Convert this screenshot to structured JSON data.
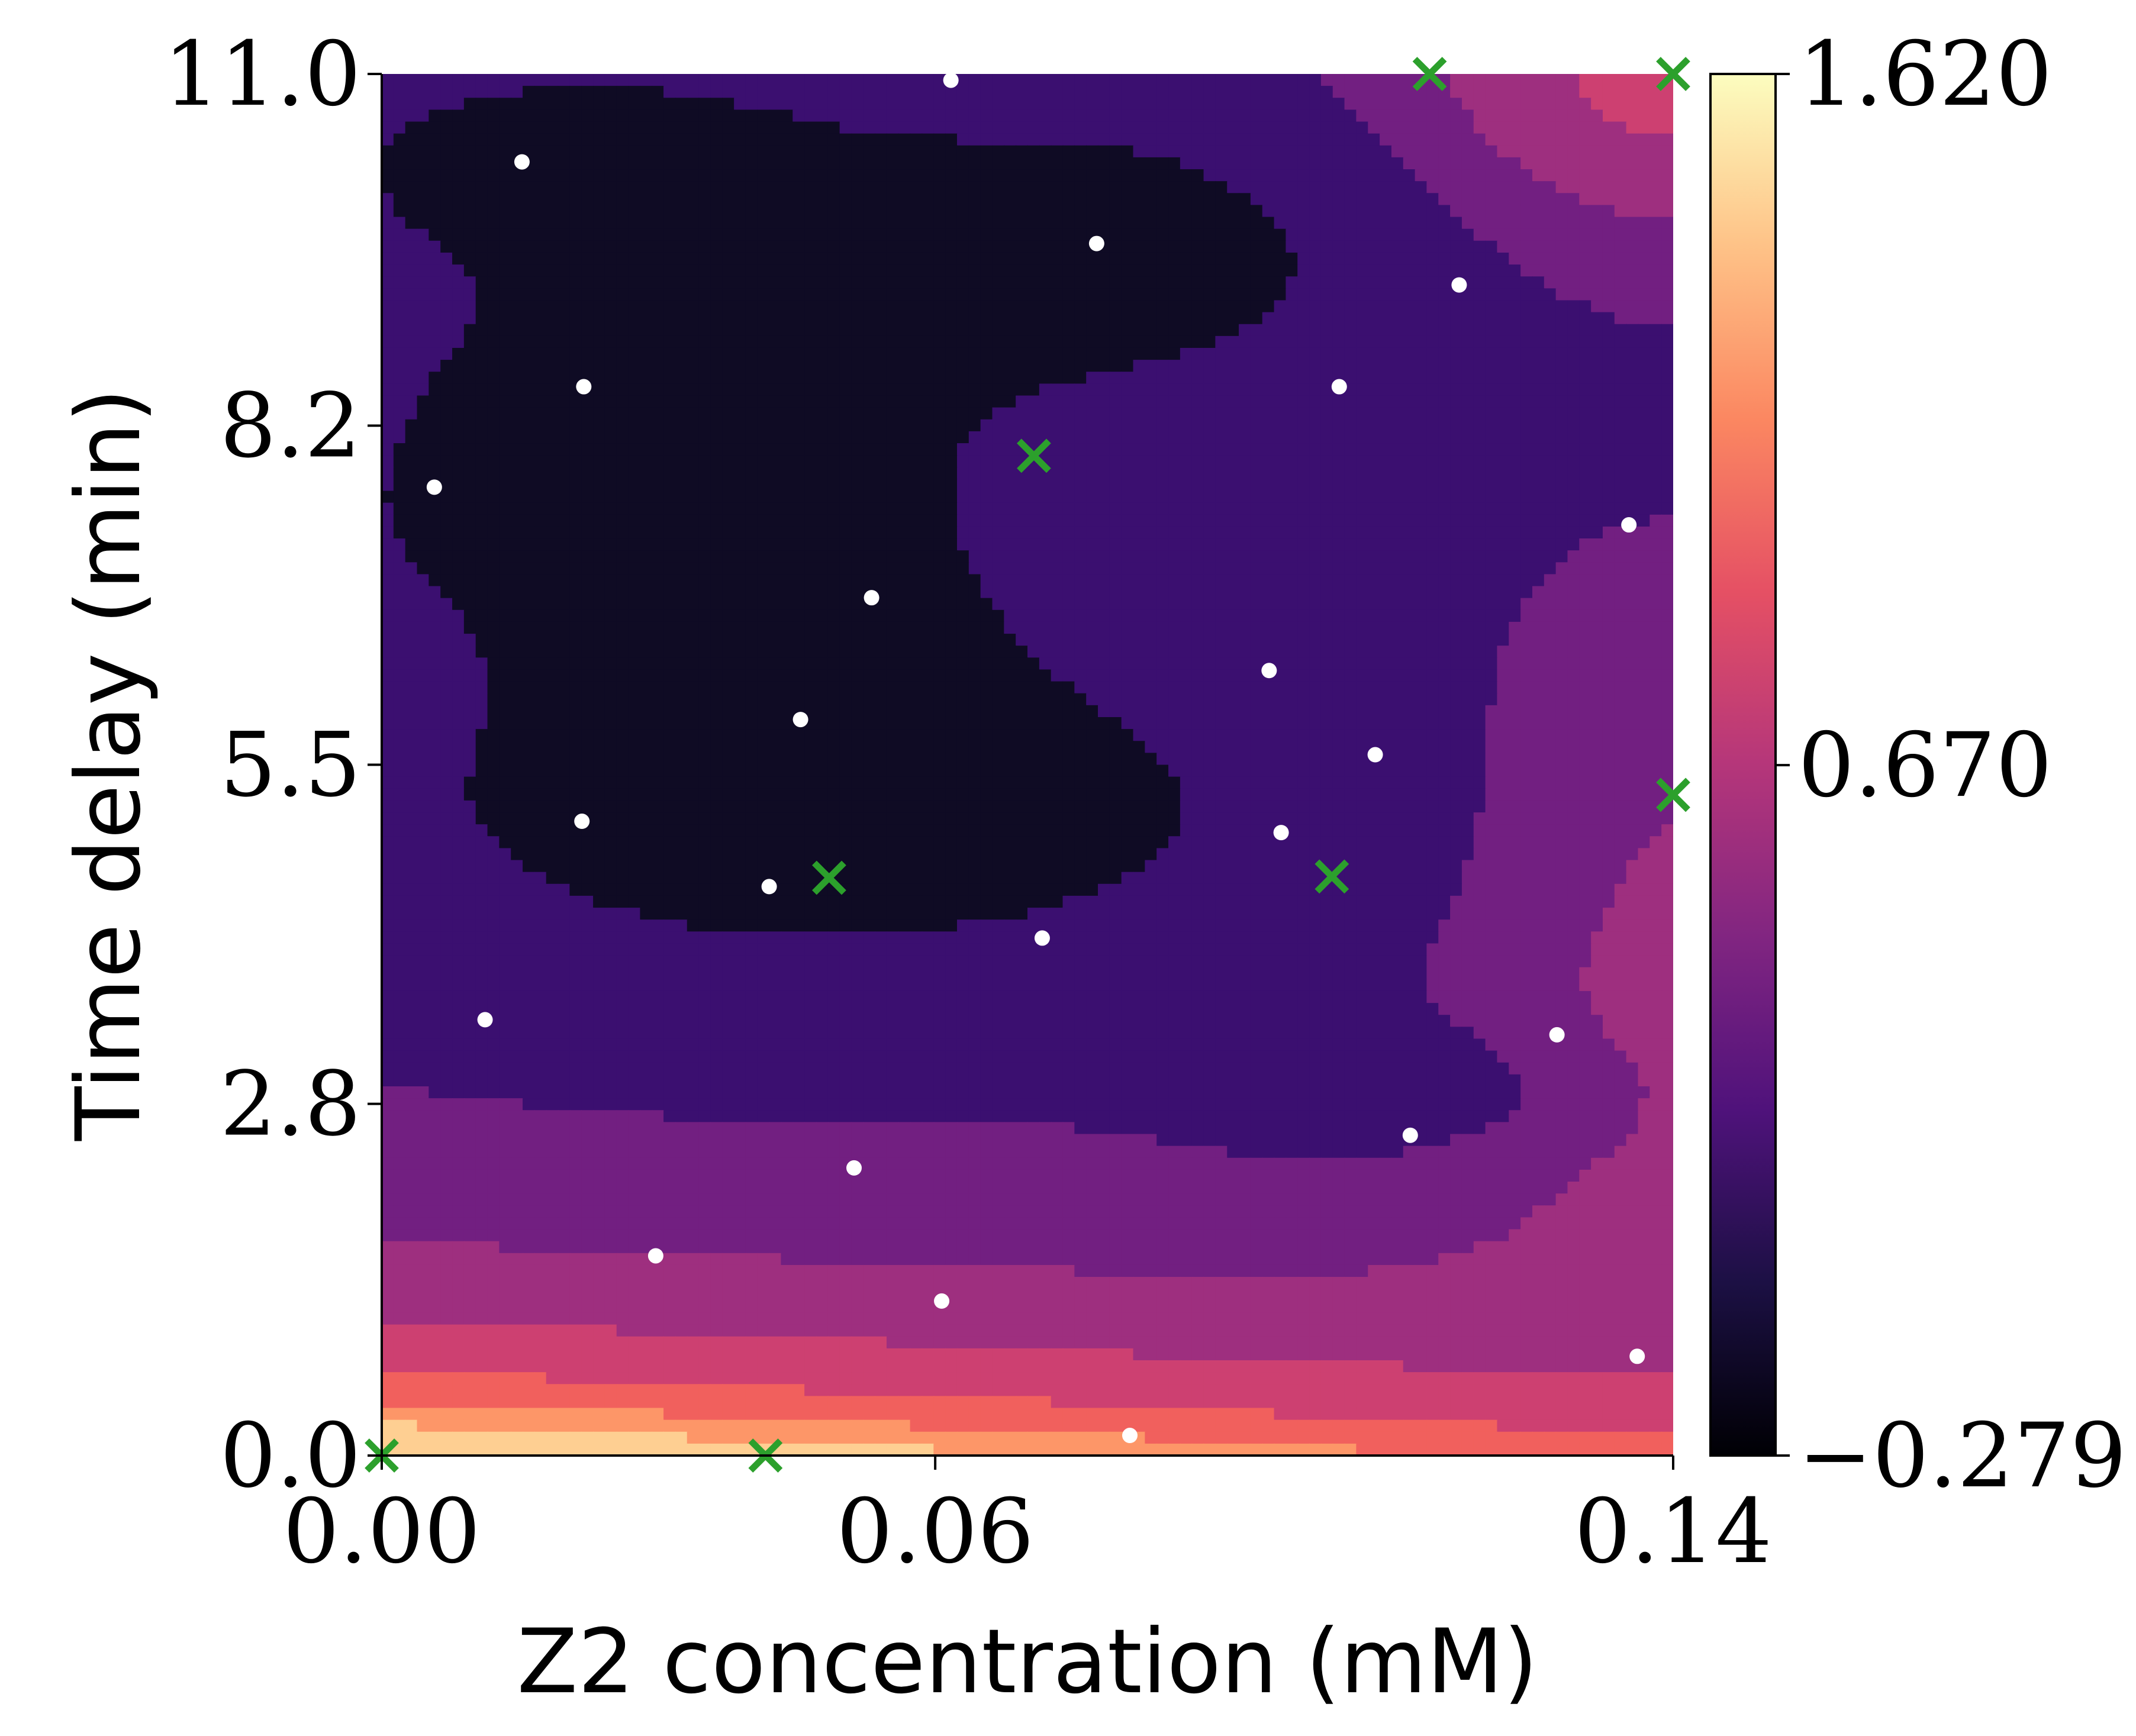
{
  "chart_data": {
    "type": "contour",
    "xlabel": "Z2 concentration (mM)",
    "ylabel": "Time delay (min)",
    "xlim": [
      0.0,
      0.14
    ],
    "ylim": [
      0.0,
      11.0
    ],
    "xticks": [
      0.0,
      0.06,
      0.14
    ],
    "xtick_labels": [
      "0.00",
      "0.06",
      "0.14"
    ],
    "yticks": [
      0.0,
      2.8,
      5.5,
      8.2,
      11.0
    ],
    "ytick_labels": [
      "0.0",
      "2.8",
      "5.5",
      "8.2",
      "11.0"
    ],
    "colormap": "magma",
    "colorbar": {
      "min": -0.279,
      "max": 1.62,
      "ticks": [
        -0.279,
        0.67,
        1.62
      ],
      "tick_labels": [
        "−0.279",
        "0.670",
        "1.620"
      ]
    },
    "contour_levels": [
      {
        "value": -0.22,
        "color": "#0f0b24"
      },
      {
        "value": 0.1,
        "color": "#3b0f70"
      },
      {
        "value": 0.45,
        "color": "#721f81"
      },
      {
        "value": 0.7,
        "color": "#9e2f7f"
      },
      {
        "value": 0.95,
        "color": "#cd4071"
      },
      {
        "value": 1.2,
        "color": "#f1605d"
      },
      {
        "value": 1.4,
        "color": "#fd9668"
      },
      {
        "value": 1.58,
        "color": "#fecf92"
      }
    ],
    "sample_points": [
      {
        "x": 0.0152,
        "y": 10.3
      },
      {
        "x": 0.0617,
        "y": 10.95
      },
      {
        "x": 0.0775,
        "y": 9.65
      },
      {
        "x": 0.1168,
        "y": 9.32
      },
      {
        "x": 0.0219,
        "y": 8.51
      },
      {
        "x": 0.1038,
        "y": 8.51
      },
      {
        "x": 0.0057,
        "y": 7.71
      },
      {
        "x": 0.1352,
        "y": 7.41
      },
      {
        "x": 0.0531,
        "y": 6.83
      },
      {
        "x": 0.0962,
        "y": 6.25
      },
      {
        "x": 0.0454,
        "y": 5.86
      },
      {
        "x": 0.1077,
        "y": 5.58
      },
      {
        "x": 0.0217,
        "y": 5.05
      },
      {
        "x": 0.0975,
        "y": 4.96
      },
      {
        "x": 0.042,
        "y": 4.53
      },
      {
        "x": 0.0716,
        "y": 4.12
      },
      {
        "x": 0.0112,
        "y": 3.47
      },
      {
        "x": 0.1274,
        "y": 3.35
      },
      {
        "x": 0.1115,
        "y": 2.55
      },
      {
        "x": 0.0512,
        "y": 2.29
      },
      {
        "x": 0.0297,
        "y": 1.59
      },
      {
        "x": 0.0607,
        "y": 1.23
      },
      {
        "x": 0.1361,
        "y": 0.79
      },
      {
        "x": 0.0811,
        "y": 0.16
      }
    ],
    "best_points": [
      {
        "x": 0.0707,
        "y": 7.96
      },
      {
        "x": 0.0485,
        "y": 4.6
      },
      {
        "x": 0.103,
        "y": 4.61
      },
      {
        "x": 0.14,
        "y": 5.26
      },
      {
        "x": 0.1136,
        "y": 11.0
      },
      {
        "x": 0.14,
        "y": 11.0
      },
      {
        "x": 0.0416,
        "y": 0.0
      },
      {
        "x": 0.0,
        "y": 0.0
      }
    ]
  }
}
